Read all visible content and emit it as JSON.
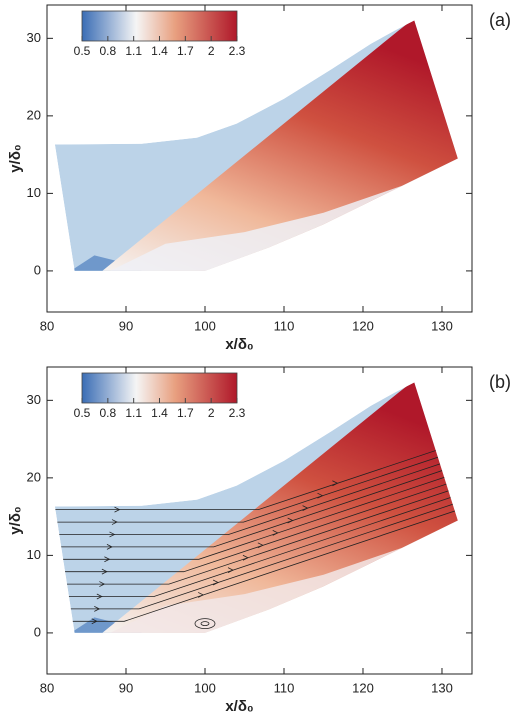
{
  "chart_data": [
    {
      "type": "field",
      "panel_label": "(a)",
      "xlabel": "x/δ₀",
      "ylabel": "y/δ₀",
      "xlim": [
        80,
        133.8
      ],
      "xticks": [
        80,
        90,
        100,
        110,
        120,
        130
      ],
      "ylim": [
        -5.3,
        34.3
      ],
      "yticks": [
        0,
        10,
        20,
        30
      ],
      "colorbar": {
        "lim": [
          0.5,
          2.3
        ],
        "ticks": [
          0.5,
          0.8,
          1.1,
          1.4,
          1.7,
          2,
          2.3
        ],
        "colors": [
          "#3a6db5",
          "#f5f5f5",
          "#b0182a"
        ]
      },
      "streamlines": false
    },
    {
      "type": "field",
      "panel_label": "(b)",
      "xlabel": "x/δ₀",
      "ylabel": "y/δ₀",
      "xlim": [
        80,
        133.8
      ],
      "xticks": [
        80,
        90,
        100,
        110,
        120,
        130
      ],
      "ylim": [
        -5.3,
        34.3
      ],
      "yticks": [
        0,
        10,
        20,
        30
      ],
      "colorbar": {
        "lim": [
          0.5,
          2.3
        ],
        "ticks": [
          0.5,
          0.8,
          1.1,
          1.4,
          1.7,
          2,
          2.3
        ],
        "colors": [
          "#3a6db5",
          "#f5f5f5",
          "#b0182a"
        ]
      },
      "streamlines": true
    }
  ]
}
